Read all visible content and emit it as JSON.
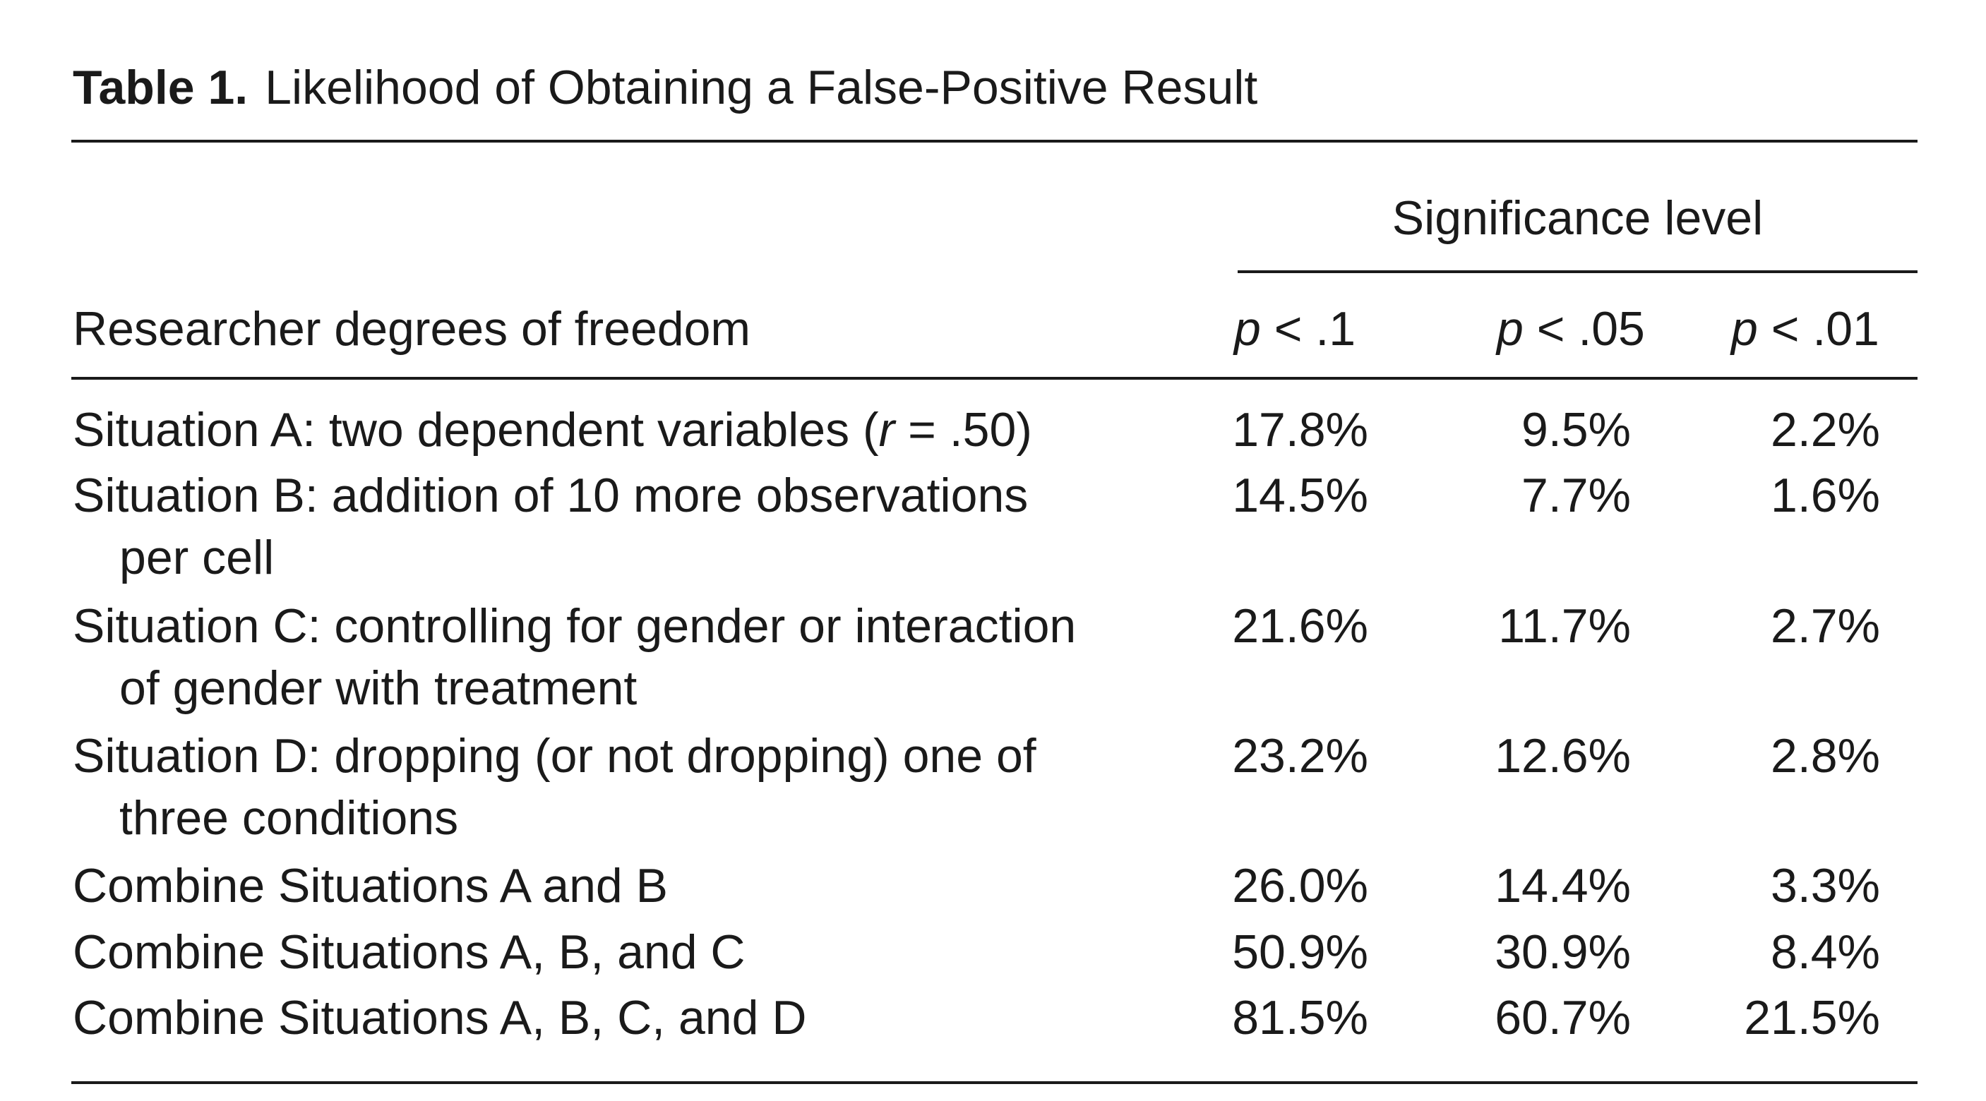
{
  "caption": {
    "label": "Table 1.",
    "title": "Likelihood of Obtaining a False-Positive Result"
  },
  "header": {
    "stub": "Researcher degrees of freedom",
    "spanner": "Significance level",
    "columns": [
      {
        "p": "p",
        "rest": " < .1"
      },
      {
        "p": "p",
        "rest": " < .05"
      },
      {
        "p": "p",
        "rest": " < .01"
      }
    ]
  },
  "rows": [
    {
      "label_pre": "Situation A: two dependent variables (",
      "label_it": "r",
      "label_post": " = .50)",
      "label_cont": "",
      "values": [
        "17.8%",
        "9.5%",
        "2.2%"
      ]
    },
    {
      "label_pre": "Situation B: addition of 10 more observations",
      "label_it": "",
      "label_post": "",
      "label_cont": "per cell",
      "values": [
        "14.5%",
        "7.7%",
        "1.6%"
      ]
    },
    {
      "label_pre": "Situation C: controlling for gender or interaction",
      "label_it": "",
      "label_post": "",
      "label_cont": "of gender with treatment",
      "values": [
        "21.6%",
        "11.7%",
        "2.7%"
      ]
    },
    {
      "label_pre": "Situation D: dropping (or not dropping) one of",
      "label_it": "",
      "label_post": "",
      "label_cont": "three conditions",
      "values": [
        "23.2%",
        "12.6%",
        "2.8%"
      ]
    },
    {
      "label_pre": "Combine Situations A and B",
      "label_it": "",
      "label_post": "",
      "label_cont": "",
      "values": [
        "26.0%",
        "14.4%",
        "3.3%"
      ]
    },
    {
      "label_pre": "Combine Situations A, B, and C",
      "label_it": "",
      "label_post": "",
      "label_cont": "",
      "values": [
        "50.9%",
        "30.9%",
        "8.4%"
      ]
    },
    {
      "label_pre": "Combine Situations A, B, C, and D",
      "label_it": "",
      "label_post": "",
      "label_cont": "",
      "values": [
        "81.5%",
        "60.7%",
        "21.5%"
      ]
    }
  ]
}
